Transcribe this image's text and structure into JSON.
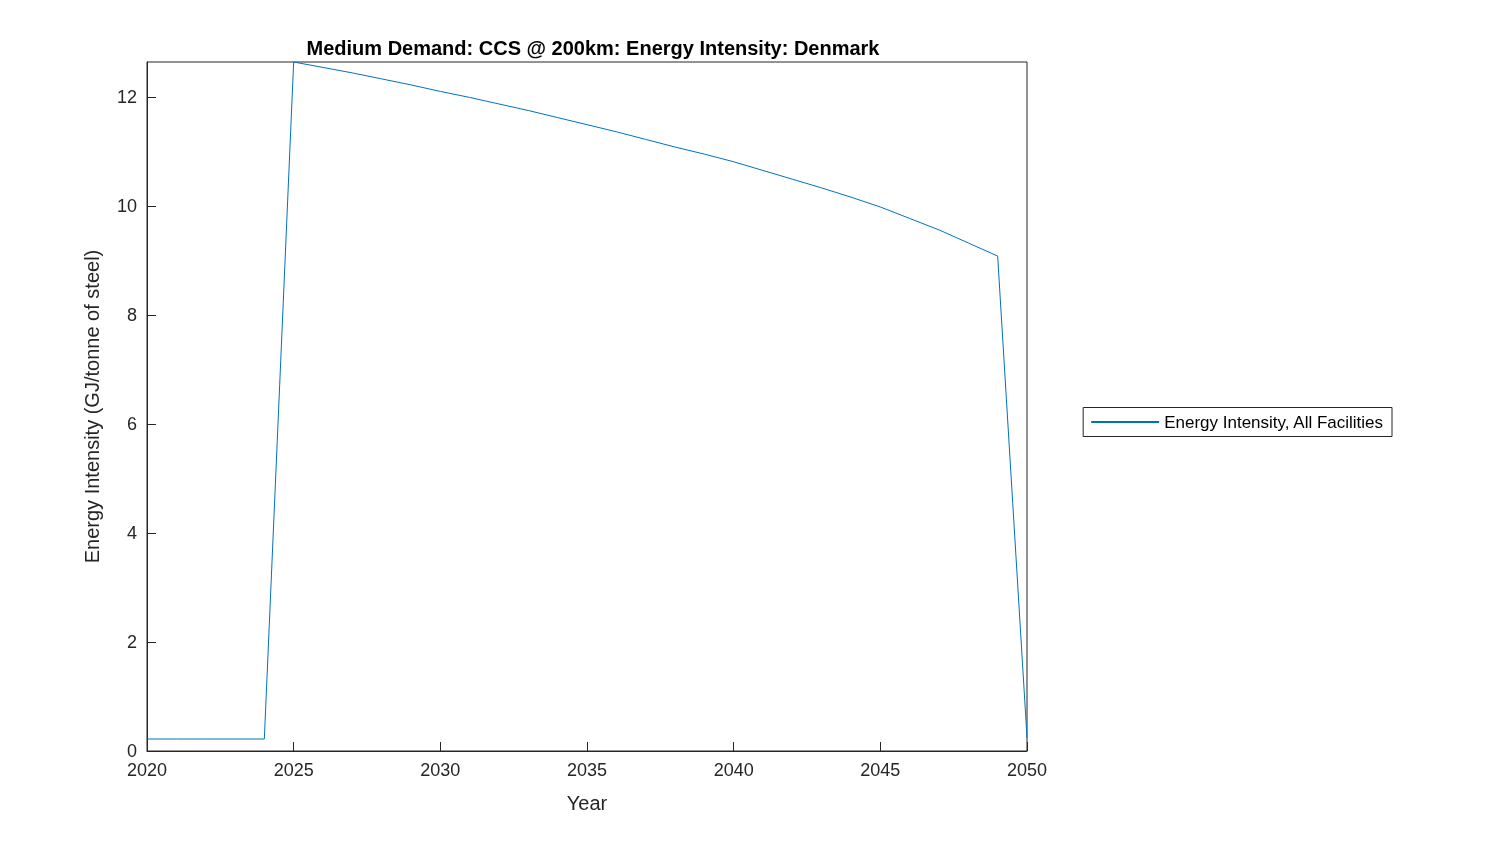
{
  "chart_data": {
    "type": "line",
    "title": "Medium Demand: CCS @ 200km: Energy Intensity: Denmark",
    "xlabel": "Year",
    "ylabel": "Energy Intensity (GJ/tonne of steel)",
    "x": [
      2020,
      2021,
      2022,
      2023,
      2024,
      2025,
      2026,
      2027,
      2028,
      2029,
      2030,
      2031,
      2032,
      2033,
      2034,
      2035,
      2036,
      2037,
      2038,
      2039,
      2040,
      2041,
      2042,
      2043,
      2044,
      2045,
      2046,
      2047,
      2048,
      2049,
      2050
    ],
    "series": [
      {
        "name": "Energy Intensity, All Facilities",
        "color": "#0072bd",
        "values": [
          0.22,
          0.22,
          0.22,
          0.22,
          0.22,
          12.64,
          12.54,
          12.44,
          12.33,
          12.22,
          12.1,
          11.99,
          11.87,
          11.75,
          11.62,
          11.49,
          11.36,
          11.22,
          11.08,
          10.95,
          10.81,
          10.65,
          10.49,
          10.33,
          10.16,
          9.98,
          9.77,
          9.56,
          9.32,
          9.08,
          0.25
        ]
      }
    ],
    "xlim": [
      2020,
      2050
    ],
    "xticks": [
      2020,
      2025,
      2030,
      2035,
      2040,
      2045,
      2050
    ],
    "ylim": [
      0,
      12.64
    ],
    "yticks": [
      0,
      2,
      4,
      6,
      8,
      10,
      12
    ],
    "grid": false,
    "legend": "right",
    "marker": "none",
    "line_style": "solid"
  }
}
